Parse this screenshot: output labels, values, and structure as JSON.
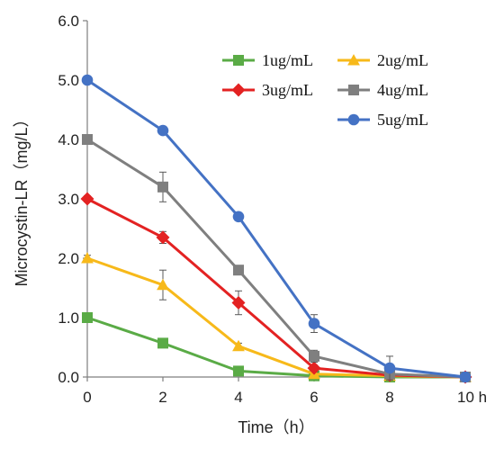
{
  "chart_data": {
    "type": "line",
    "title": "",
    "xlabel": "Time（h）",
    "ylabel": "Microcystin-LR（mg/L）",
    "x": [
      0,
      2,
      4,
      6,
      8,
      10
    ],
    "x_tick_labels": [
      "0",
      "2",
      "4",
      "6",
      "8",
      "10 h"
    ],
    "xlim": [
      0,
      10
    ],
    "ylim": [
      0,
      6
    ],
    "y_ticks": [
      0,
      1,
      2,
      3,
      4,
      5,
      6
    ],
    "y_tick_labels": [
      "0.0",
      "1.0",
      "2.0",
      "3.0",
      "4.0",
      "5.0",
      "6.0"
    ],
    "grid": false,
    "legend_position": "top-right",
    "series": [
      {
        "name": "1ug/mL",
        "color": "#5aab46",
        "marker": "square",
        "values": [
          1.0,
          0.57,
          0.1,
          0.02,
          0.0,
          0.0
        ],
        "errors": [
          0.05,
          0.05,
          0.03,
          0.02,
          0.01,
          0.0
        ]
      },
      {
        "name": "2ug/mL",
        "color": "#f7b91a",
        "marker": "triangle",
        "values": [
          2.0,
          1.55,
          0.52,
          0.05,
          0.02,
          0.0
        ],
        "errors": [
          0.05,
          0.25,
          0.05,
          0.03,
          0.02,
          0.0
        ]
      },
      {
        "name": "3ug/mL",
        "color": "#e32222",
        "marker": "diamond",
        "values": [
          3.0,
          2.35,
          1.25,
          0.15,
          0.03,
          0.0
        ],
        "errors": [
          0.05,
          0.1,
          0.2,
          0.05,
          0.03,
          0.0
        ]
      },
      {
        "name": "4ug/mL",
        "color": "#7f7f7f",
        "marker": "square",
        "values": [
          4.0,
          3.2,
          1.8,
          0.35,
          0.05,
          0.0
        ],
        "errors": [
          0.05,
          0.25,
          0.05,
          0.1,
          0.05,
          0.0
        ]
      },
      {
        "name": "5ug/mL",
        "color": "#4472c4",
        "marker": "circle",
        "values": [
          5.0,
          4.15,
          2.7,
          0.9,
          0.15,
          0.0
        ],
        "errors": [
          0.05,
          0.05,
          0.05,
          0.15,
          0.2,
          0.0
        ]
      }
    ]
  }
}
